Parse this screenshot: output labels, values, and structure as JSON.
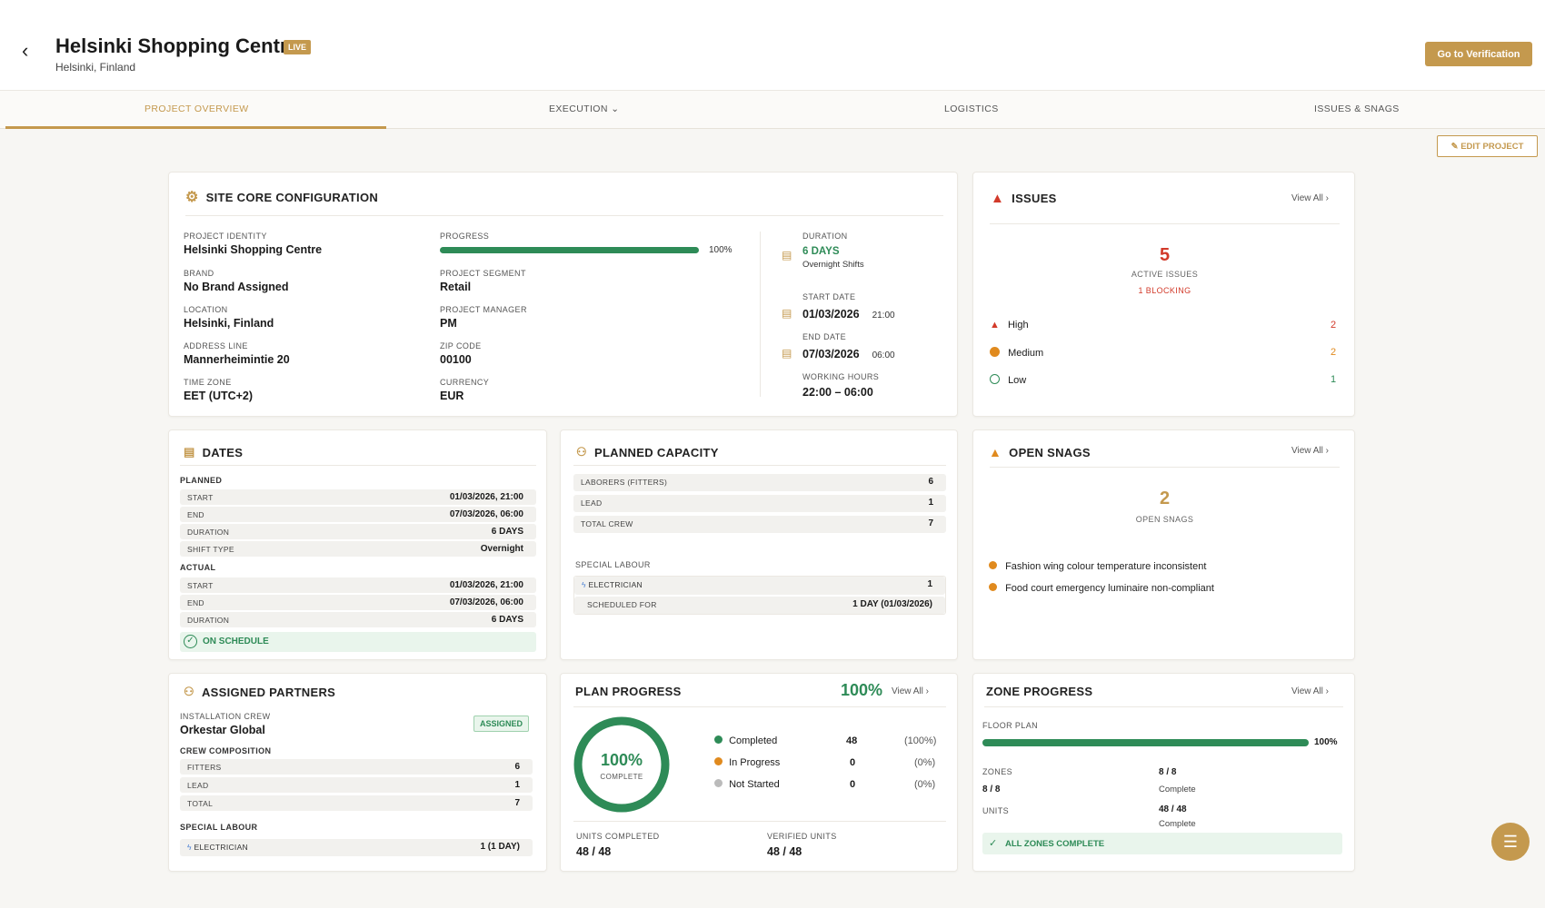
{
  "header": {
    "title": "Helsinki Shopping Centre",
    "badge": "LIVE",
    "subtitle": "Helsinki, Finland",
    "verify_button": "Go to Verification"
  },
  "tabs": [
    {
      "label": "PROJECT OVERVIEW"
    },
    {
      "label": "EXECUTION"
    },
    {
      "label": "LOGISTICS"
    },
    {
      "label": "ISSUES & SNAGS"
    }
  ],
  "edit_button": "EDIT PROJECT",
  "site": {
    "title": "SITE CORE CONFIGURATION",
    "fields": [
      {
        "label": "PROJECT IDENTITY",
        "value": "Helsinki Shopping Centre"
      },
      {
        "label": "BRAND",
        "value": "No Brand Assigned"
      },
      {
        "label": "LOCATION",
        "value": "Helsinki, Finland"
      },
      {
        "label": "ADDRESS LINE",
        "value": "Mannerheimintie 20"
      },
      {
        "label": "TIME ZONE",
        "value": "EET (UTC+2)"
      }
    ],
    "progress_label": "PROGRESS",
    "progress_value": "100%",
    "progress_fraction": 1.0,
    "fields2": [
      {
        "label": "PROJECT SEGMENT",
        "value": "Retail"
      },
      {
        "label": "PROJECT MANAGER",
        "value": "PM"
      },
      {
        "label": "ZIP CODE",
        "value": "00100"
      },
      {
        "label": "CURRENCY",
        "value": "EUR"
      }
    ],
    "duration_label": "DURATION",
    "duration_value": "6 DAYS",
    "duration_note": "Overnight Shifts",
    "start_label": "START DATE",
    "start_date": "01/03/2026",
    "start_time": "21:00",
    "end_label": "END DATE",
    "end_date": "07/03/2026",
    "end_time": "06:00",
    "hours_label": "WORKING HOURS",
    "hours_value": "22:00 – 06:00"
  },
  "issues": {
    "title": "ISSUES",
    "view_all": "View All",
    "count": "5",
    "count_label": "ACTIVE ISSUES",
    "blocking": "1 BLOCKING",
    "levels": [
      {
        "name": "High",
        "count": "2",
        "color": "#d23a2a"
      },
      {
        "name": "Medium",
        "count": "2",
        "color": "#e08a1e"
      },
      {
        "name": "Low",
        "count": "1",
        "color": "#2e8b57"
      }
    ]
  },
  "dates": {
    "title": "DATES",
    "planned_label": "PLANNED",
    "actual_label": "ACTUAL",
    "planned": [
      {
        "k": "START",
        "v": "01/03/2026, 21:00"
      },
      {
        "k": "END",
        "v": "07/03/2026, 06:00"
      },
      {
        "k": "DURATION",
        "v": "6 DAYS"
      },
      {
        "k": "SHIFT TYPE",
        "v": "Overnight"
      }
    ],
    "actual": [
      {
        "k": "START",
        "v": "01/03/2026, 21:00"
      },
      {
        "k": "END",
        "v": "07/03/2026, 06:00"
      },
      {
        "k": "DURATION",
        "v": "6 DAYS"
      }
    ],
    "status": "ON SCHEDULE"
  },
  "capacity": {
    "title": "PLANNED CAPACITY",
    "rows": [
      {
        "k": "LABORERS (FITTERS)",
        "v": "6"
      },
      {
        "k": "LEAD",
        "v": "1"
      },
      {
        "k": "TOTAL CREW",
        "v": "7"
      }
    ],
    "special_label": "SPECIAL LABOUR",
    "electrician": "ELECTRICIAN",
    "electrician_count": "1",
    "scheduled_label": "SCHEDULED FOR",
    "scheduled_value": "1 DAY (01/03/2026)"
  },
  "snags": {
    "title": "OPEN SNAGS",
    "view_all": "View All",
    "count": "2",
    "count_label": "OPEN SNAGS",
    "items": [
      "Fashion wing colour temperature inconsistent",
      "Food court emergency luminaire non-compliant"
    ]
  },
  "partners": {
    "title": "ASSIGNED PARTNERS",
    "crew_label": "INSTALLATION CREW",
    "crew_name": "Orkestar Global",
    "status": "ASSIGNED",
    "composition_label": "CREW COMPOSITION",
    "rows": [
      {
        "k": "FITTERS",
        "v": "6"
      },
      {
        "k": "LEAD",
        "v": "1"
      },
      {
        "k": "TOTAL",
        "v": "7"
      }
    ],
    "special_label": "SPECIAL LABOUR",
    "electrician": "ELECTRICIAN",
    "electrician_value": "1 (1 DAY)"
  },
  "plan": {
    "title": "PLAN PROGRESS",
    "percent": "100%",
    "view_all": "View All",
    "ring_value": "100%",
    "ring_label": "COMPLETE",
    "fraction": 1.0,
    "legend": [
      {
        "name": "Completed",
        "count": "48",
        "pct": "(100%)",
        "color": "#2e8b57"
      },
      {
        "name": "In Progress",
        "count": "0",
        "pct": "(0%)",
        "color": "#e08a1e"
      },
      {
        "name": "Not Started",
        "count": "0",
        "pct": "(0%)",
        "color": "#bbbbbb"
      }
    ],
    "units_label": "UNITS COMPLETED",
    "units_value": "48 / 48",
    "verified_label": "VERIFIED UNITS",
    "verified_value": "48 / 48"
  },
  "zone": {
    "title": "ZONE PROGRESS",
    "view_all": "View All",
    "floor_label": "FLOOR PLAN",
    "floor_value": "100%",
    "floor_fraction": 1.0,
    "zones_label": "ZONES",
    "zones_value": "8 / 8",
    "zones_right": "8 / 8",
    "zones_status": "Complete",
    "units_label": "UNITS",
    "units_right": "48 / 48",
    "units_status": "Complete",
    "all_complete": "ALL ZONES COMPLETE"
  },
  "colors": {
    "accent": "#c4994e",
    "green": "#2e8b57",
    "red": "#d23a2a",
    "orange": "#e08a1e"
  }
}
